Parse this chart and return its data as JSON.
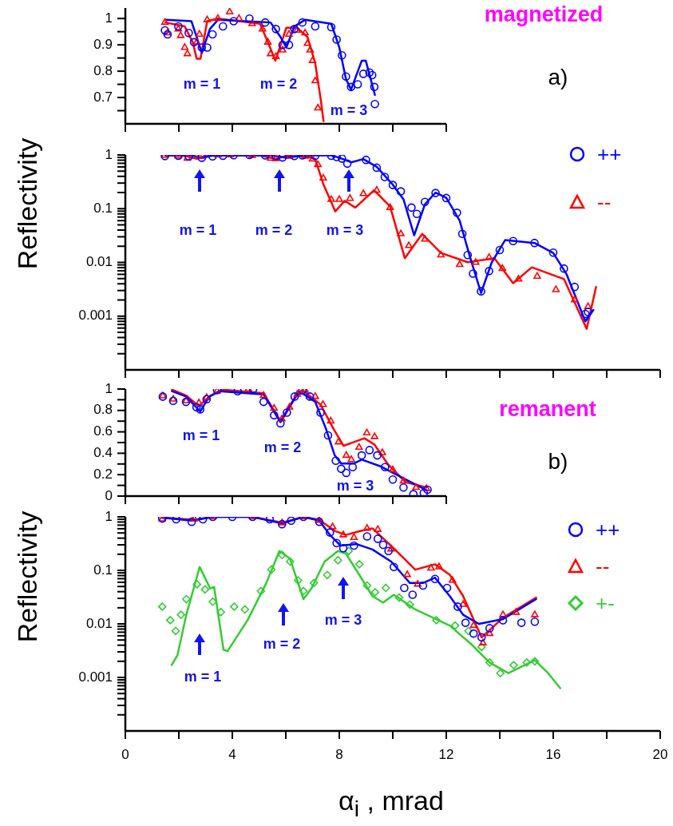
{
  "chart_data": [
    {
      "type": "scatter",
      "xlim": [
        0,
        12
      ],
      "xticks": [
        0,
        2,
        4,
        6,
        8,
        10,
        12
      ],
      "ylim": [
        0.6,
        1.04
      ],
      "yticks": [
        {
          "value": 0.65,
          "label": null
        },
        0.7,
        {
          "value": 0.75,
          "label": null
        },
        0.8,
        {
          "value": 0.85,
          "label": null
        },
        0.9,
        {
          "value": 0.95,
          "label": null
        },
        1
      ],
      "tick_labels": "y",
      "annotations": [
        "magnetized",
        "a)",
        "m = 1",
        "m = 2",
        "m = 3"
      ],
      "series": [
        {
          "type": "scatter",
          "marker": "circle",
          "color": "#0000ff",
          "x": [
            1.48,
            1.58,
            1.98,
            2.37,
            2.57,
            2.86,
            3.06,
            3.26,
            3.65,
            4.05,
            4.64,
            5.23,
            5.63,
            5.88,
            6.12,
            6.32,
            6.62,
            7.1,
            7.7,
            7.9,
            8.1,
            8.25,
            8.44,
            8.69,
            8.9,
            9.13,
            9.23,
            9.31,
            9.33
          ],
          "values": [
            0.955,
            0.94,
            0.97,
            0.945,
            0.91,
            0.89,
            0.89,
            0.94,
            0.97,
            0.99,
            1.0,
            0.985,
            0.96,
            0.9,
            0.9,
            0.96,
            0.985,
            0.97,
            0.967,
            0.92,
            0.86,
            0.78,
            0.74,
            0.75,
            0.79,
            0.795,
            0.785,
            0.74,
            0.675
          ]
        },
        {
          "type": "scatter",
          "marker": "triangle",
          "color": "#ff0000",
          "x": [
            1.48,
            1.58,
            1.98,
            2.07,
            2.22,
            2.32,
            2.67,
            2.77,
            3.06,
            3.46,
            3.9,
            4.25,
            4.74,
            5.13,
            5.33,
            5.43,
            5.63,
            5.88,
            6.12,
            6.42,
            6.72,
            6.81,
            6.91,
            7.0,
            7.1,
            7.2
          ],
          "values": [
            0.985,
            0.945,
            0.96,
            0.935,
            0.89,
            0.866,
            0.91,
            0.94,
            0.995,
            1.0,
            1.025,
            1.0,
            0.98,
            0.96,
            0.91,
            0.866,
            0.855,
            0.88,
            0.94,
            0.955,
            0.945,
            0.905,
            0.88,
            0.84,
            0.763,
            0.66
          ]
        },
        {
          "type": "line",
          "color": "#0000ff",
          "x": [
            1.5,
            2.47,
            2.86,
            3.16,
            3.46,
            5.43,
            5.8,
            6.02,
            6.32,
            6.72,
            7.7,
            8.0,
            8.25,
            8.44,
            8.84,
            8.99,
            9.33
          ],
          "values": [
            0.995,
            0.99,
            0.87,
            0.96,
            0.995,
            0.985,
            0.93,
            0.89,
            0.97,
            0.995,
            0.98,
            0.89,
            0.77,
            0.73,
            0.84,
            0.84,
            0.71
          ]
        },
        {
          "type": "line",
          "color": "#ff0000",
          "x": [
            1.5,
            2.22,
            2.52,
            2.67,
            2.81,
            3.06,
            3.46,
            5.04,
            5.43,
            5.61,
            6.02,
            6.42,
            6.81,
            7.1,
            7.31,
            7.41
          ],
          "values": [
            0.985,
            0.97,
            0.91,
            0.847,
            0.847,
            0.99,
            1.0,
            0.98,
            0.885,
            0.84,
            0.965,
            0.965,
            0.93,
            0.83,
            0.69,
            0.61
          ]
        }
      ]
    },
    {
      "type": "scatter",
      "ylabel": "Reflectivity",
      "xlim": [
        0,
        20
      ],
      "xticks": [
        0,
        2,
        4,
        6,
        8,
        10,
        12,
        14,
        16,
        18,
        20
      ],
      "ylim": [
        0.0001,
        1
      ],
      "log": "y",
      "tick_labels": "y",
      "legend": "top right",
      "yticks": [
        {
          "value": 0.0002,
          "label": null
        },
        {
          "value": 0.0003,
          "label": null
        },
        {
          "value": 0.0004,
          "label": null
        },
        {
          "value": 0.0005,
          "label": null
        },
        {
          "value": 0.0006,
          "label": null
        },
        {
          "value": 0.0007,
          "label": null
        },
        {
          "value": 0.0008,
          "label": null
        },
        {
          "value": 0.0009,
          "label": null
        },
        0.001,
        {
          "value": 0.002,
          "label": null
        },
        {
          "value": 0.003,
          "label": null
        },
        {
          "value": 0.004,
          "label": null
        },
        {
          "value": 0.005,
          "label": null
        },
        {
          "value": 0.006,
          "label": null
        },
        {
          "value": 0.007,
          "label": null
        },
        {
          "value": 0.008,
          "label": null
        },
        {
          "value": 0.009,
          "label": null
        },
        0.01,
        {
          "value": 0.02,
          "label": null
        },
        {
          "value": 0.03,
          "label": null
        },
        {
          "value": 0.04,
          "label": null
        },
        {
          "value": 0.05,
          "label": null
        },
        {
          "value": 0.06,
          "label": null
        },
        {
          "value": 0.07,
          "label": null
        },
        {
          "value": 0.08,
          "label": null
        },
        {
          "value": 0.09,
          "label": null
        },
        0.1,
        {
          "value": 0.2,
          "label": null
        },
        {
          "value": 0.3,
          "label": null
        },
        {
          "value": 0.4,
          "label": null
        },
        {
          "value": 0.5,
          "label": null
        },
        {
          "value": 0.6,
          "label": null
        },
        {
          "value": 0.7,
          "label": null
        },
        {
          "value": 0.8,
          "label": null
        },
        {
          "value": 0.9,
          "label": null
        },
        1
      ],
      "annotations": [
        "m = 1",
        "m = 2",
        "m = 3"
      ],
      "series": [
        {
          "name": "++",
          "type": "scatter",
          "marker": "circle",
          "color": "#0000ff",
          "x": [
            1.48,
            1.98,
            2.37,
            2.86,
            3.26,
            3.65,
            4.05,
            4.64,
            5.23,
            5.63,
            5.88,
            6.32,
            6.62,
            7.1,
            7.7,
            7.9,
            8.1,
            8.3,
            9.0,
            9.4,
            9.7,
            10.0,
            10.3,
            10.7,
            10.9,
            11.2,
            11.6,
            12.0,
            12.4,
            12.6,
            12.8,
            13.0,
            13.3,
            13.6,
            14.0,
            14.5,
            15.3,
            16.0,
            16.4,
            16.8,
            17.2,
            17.3
          ],
          "values": [
            0.955,
            0.97,
            0.945,
            0.89,
            0.94,
            0.97,
            0.99,
            1.0,
            0.985,
            0.96,
            0.9,
            0.96,
            0.985,
            0.97,
            0.967,
            0.92,
            0.86,
            0.69,
            0.81,
            0.58,
            0.39,
            0.276,
            0.21,
            0.105,
            0.08,
            0.134,
            0.196,
            0.158,
            0.084,
            0.034,
            0.0137,
            0.0062,
            0.0029,
            0.0069,
            0.017,
            0.025,
            0.023,
            0.0152,
            0.0077,
            0.0035,
            0.0011,
            0.0012
          ]
        },
        {
          "name": "--",
          "type": "scatter",
          "marker": "triangle",
          "color": "#ff0000",
          "x": [
            1.48,
            1.98,
            2.32,
            2.77,
            3.46,
            3.9,
            4.74,
            5.43,
            5.63,
            6.12,
            6.72,
            7.0,
            7.2,
            7.4,
            7.7,
            8.0,
            8.4,
            8.9,
            9.4,
            9.9,
            10.3,
            10.6,
            11.2,
            11.8,
            12.5,
            13.1,
            13.6,
            14.1,
            14.7,
            15.4,
            16.1,
            16.8,
            17.3
          ],
          "values": [
            0.985,
            0.96,
            0.866,
            0.94,
            1.0,
            1.0,
            0.98,
            0.866,
            0.855,
            0.94,
            0.945,
            0.84,
            0.66,
            0.37,
            0.148,
            0.148,
            0.155,
            0.19,
            0.22,
            0.105,
            0.034,
            0.0205,
            0.027,
            0.0137,
            0.0091,
            0.01,
            0.0123,
            0.0077,
            0.0049,
            0.0055,
            0.0031,
            0.002,
            0.0015
          ]
        },
        {
          "type": "line",
          "color": "#0000ff",
          "x": [
            1.5,
            2.47,
            2.86,
            3.16,
            3.46,
            5.43,
            6.02,
            6.72,
            7.7,
            8.0,
            8.44,
            8.9,
            9.4,
            10.0,
            10.4,
            10.8,
            11.2,
            11.6,
            12.0,
            12.5,
            12.9,
            13.3,
            13.7,
            14.2,
            15.3,
            16.0,
            16.5,
            17.2,
            17.5
          ],
          "values": [
            0.995,
            0.99,
            0.87,
            0.96,
            0.995,
            0.985,
            0.89,
            0.995,
            0.98,
            0.89,
            0.73,
            0.84,
            0.6,
            0.28,
            0.15,
            0.032,
            0.12,
            0.2,
            0.16,
            0.06,
            0.012,
            0.0027,
            0.01,
            0.026,
            0.023,
            0.015,
            0.006,
            0.0008,
            0.0013
          ]
        },
        {
          "type": "line",
          "color": "#ff0000",
          "x": [
            1.5,
            2.22,
            2.67,
            3.06,
            5.04,
            5.61,
            6.02,
            6.81,
            7.1,
            7.4,
            7.85,
            8.2,
            8.6,
            9.3,
            9.9,
            10.45,
            11.1,
            11.8,
            12.8,
            13.8,
            14.5,
            15.2,
            16.4,
            17.25,
            17.6
          ],
          "values": [
            0.985,
            0.97,
            0.847,
            0.99,
            0.98,
            0.84,
            0.965,
            0.93,
            0.83,
            0.29,
            0.089,
            0.14,
            0.105,
            0.22,
            0.11,
            0.012,
            0.034,
            0.015,
            0.0101,
            0.012,
            0.0041,
            0.0081,
            0.0049,
            0.00058,
            0.0035
          ]
        }
      ]
    },
    {
      "type": "scatter",
      "xlim": [
        0,
        12
      ],
      "xticks": [
        0,
        2,
        4,
        6,
        8,
        10,
        12
      ],
      "ylim": [
        0,
        1
      ],
      "yticks": [
        0,
        {
          "value": 0.1,
          "label": null
        },
        0.2,
        {
          "value": 0.3,
          "label": null
        },
        0.4,
        {
          "value": 0.5,
          "label": null
        },
        0.6,
        {
          "value": 0.7,
          "label": null
        },
        0.8,
        {
          "value": 0.9,
          "label": null
        },
        1
      ],
      "tick_labels": "y",
      "annotations": [
        "remanent",
        "b)",
        "m = 1",
        "m = 2",
        "m = 3"
      ],
      "series": [
        {
          "type": "scatter",
          "marker": "circle",
          "color": "#0000ff",
          "x": [
            1.4,
            1.79,
            2.27,
            2.66,
            2.8,
            3.04,
            3.43,
            4.2,
            4.78,
            5.17,
            5.56,
            5.8,
            6.04,
            6.33,
            6.62,
            6.9,
            7.3,
            7.58,
            7.87,
            8.07,
            8.26,
            8.5,
            8.84,
            9.13,
            9.42,
            9.71,
            10.0,
            10.4,
            10.77,
            11.16,
            11.3
          ],
          "values": [
            0.93,
            0.89,
            0.88,
            0.83,
            0.81,
            0.905,
            0.99,
            0.98,
            1.0,
            0.88,
            0.755,
            0.68,
            0.78,
            0.93,
            0.99,
            0.93,
            0.78,
            0.567,
            0.33,
            0.255,
            0.217,
            0.27,
            0.38,
            0.43,
            0.38,
            0.27,
            0.155,
            0.08,
            0.018,
            0.03,
            0.06
          ]
        },
        {
          "type": "scatter",
          "marker": "triangle",
          "color": "#ff0000",
          "x": [
            1.4,
            1.79,
            2.27,
            2.75,
            3.04,
            3.43,
            4.6,
            5.17,
            5.56,
            5.85,
            6.14,
            6.43,
            6.72,
            7.1,
            7.39,
            7.68,
            7.97,
            8.26,
            8.45,
            8.74,
            9.03,
            9.32,
            9.61,
            10.0,
            10.4,
            10.87,
            11.26
          ],
          "values": [
            0.935,
            0.905,
            0.89,
            0.87,
            0.92,
            0.98,
            1.0,
            0.94,
            0.82,
            0.72,
            0.83,
            0.95,
            0.99,
            0.93,
            0.855,
            0.7,
            0.505,
            0.38,
            0.34,
            0.455,
            0.59,
            0.555,
            0.405,
            0.245,
            0.14,
            0.08,
            0.07
          ]
        },
        {
          "type": "line",
          "color": "#0000ff",
          "x": [
            1.74,
            2.27,
            2.8,
            3.14,
            3.53,
            5.17,
            5.8,
            6.43,
            6.62,
            7.1,
            7.5,
            7.83,
            8.07,
            8.55,
            8.84,
            9.52,
            10.48,
            11.26
          ],
          "values": [
            0.98,
            0.93,
            0.79,
            0.93,
            0.98,
            0.95,
            0.69,
            0.95,
            0.96,
            0.88,
            0.63,
            0.38,
            0.305,
            0.305,
            0.34,
            0.28,
            0.155,
            0.055
          ]
        },
        {
          "type": "line",
          "color": "#ff0000",
          "x": [
            1.74,
            2.27,
            2.75,
            3.14,
            3.62,
            5.17,
            5.8,
            6.43,
            6.62,
            7.3,
            7.78,
            8.16,
            8.55,
            8.94,
            9.32,
            9.81,
            10.48,
            11.26
          ],
          "values": [
            0.995,
            0.94,
            0.84,
            0.93,
            0.995,
            0.96,
            0.7,
            0.96,
            0.99,
            0.855,
            0.63,
            0.47,
            0.505,
            0.54,
            0.48,
            0.3,
            0.13,
            0.08
          ]
        }
      ]
    },
    {
      "type": "scatter",
      "ylabel": "Reflectivity",
      "xlabel": "α$_{i}$ , mrad",
      "xlim": [
        0,
        20
      ],
      "xticks": [
        0,
        {
          "value": 2,
          "label": null
        },
        4,
        {
          "value": 6,
          "label": null
        },
        8,
        {
          "value": 10,
          "label": null
        },
        12,
        {
          "value": 14,
          "label": null
        },
        16,
        {
          "value": 18,
          "label": null
        },
        20
      ],
      "ylim": [
        0.0001,
        1
      ],
      "log": "y",
      "legend": "top right",
      "yticks": [
        {
          "value": 0.0002,
          "label": null
        },
        {
          "value": 0.0003,
          "label": null
        },
        {
          "value": 0.0004,
          "label": null
        },
        {
          "value": 0.0005,
          "label": null
        },
        {
          "value": 0.0006,
          "label": null
        },
        {
          "value": 0.0007,
          "label": null
        },
        {
          "value": 0.0008,
          "label": null
        },
        {
          "value": 0.0009,
          "label": null
        },
        0.001,
        {
          "value": 0.002,
          "label": null
        },
        {
          "value": 0.003,
          "label": null
        },
        {
          "value": 0.004,
          "label": null
        },
        {
          "value": 0.005,
          "label": null
        },
        {
          "value": 0.006,
          "label": null
        },
        {
          "value": 0.007,
          "label": null
        },
        {
          "value": 0.008,
          "label": null
        },
        {
          "value": 0.009,
          "label": null
        },
        0.01,
        {
          "value": 0.02,
          "label": null
        },
        {
          "value": 0.03,
          "label": null
        },
        {
          "value": 0.04,
          "label": null
        },
        {
          "value": 0.05,
          "label": null
        },
        {
          "value": 0.06,
          "label": null
        },
        {
          "value": 0.07,
          "label": null
        },
        {
          "value": 0.08,
          "label": null
        },
        {
          "value": 0.09,
          "label": null
        },
        0.1,
        {
          "value": 0.2,
          "label": null
        },
        {
          "value": 0.3,
          "label": null
        },
        {
          "value": 0.4,
          "label": null
        },
        {
          "value": 0.5,
          "label": null
        },
        {
          "value": 0.6,
          "label": null
        },
        {
          "value": 0.7,
          "label": null
        },
        {
          "value": 0.8,
          "label": null
        },
        {
          "value": 0.9,
          "label": null
        },
        1
      ],
      "annotations": [
        "m = 1",
        "m = 2",
        "m = 3"
      ],
      "series": [
        {
          "name": "++",
          "type": "scatter",
          "marker": "circle",
          "color": "#0000ff",
          "x": [
            1.38,
            1.9,
            2.48,
            2.9,
            3.27,
            4.0,
            4.76,
            5.4,
            5.86,
            6.2,
            6.66,
            7.25,
            7.65,
            7.9,
            8.15,
            8.55,
            9.04,
            9.44,
            9.64,
            9.84,
            10.04,
            10.43,
            10.74,
            11.13,
            11.58,
            12.03,
            12.43,
            12.72,
            13.02,
            13.32,
            13.62,
            14.12,
            14.81,
            15.31
          ],
          "values": [
            0.93,
            0.9,
            0.81,
            0.9,
            1.0,
            1.0,
            1.0,
            0.9,
            0.73,
            0.85,
            1.0,
            0.81,
            0.51,
            0.325,
            0.26,
            0.29,
            0.43,
            0.39,
            0.3,
            0.23,
            0.116,
            0.047,
            0.035,
            0.052,
            0.069,
            0.047,
            0.021,
            0.0105,
            0.0066,
            0.0056,
            0.0083,
            0.0117,
            0.0105,
            0.011
          ]
        },
        {
          "name": "--",
          "type": "scatter",
          "marker": "triangle",
          "color": "#ff0000",
          "x": [
            1.38,
            2.58,
            3.27,
            4.76,
            5.86,
            6.66,
            7.25,
            7.75,
            8.15,
            8.55,
            9.04,
            9.44,
            9.94,
            10.54,
            10.93,
            11.43,
            11.73,
            12.23,
            12.63,
            13.02,
            13.37,
            13.62,
            14.12,
            14.61,
            15.31
          ],
          "values": [
            0.91,
            0.91,
            1.0,
            1.0,
            0.77,
            1.0,
            0.86,
            0.65,
            0.46,
            0.41,
            0.61,
            0.58,
            0.25,
            0.083,
            0.055,
            0.11,
            0.116,
            0.065,
            0.023,
            0.0093,
            0.0044,
            0.0066,
            0.0148,
            0.0164,
            0.0148
          ]
        },
        {
          "name": "+-",
          "type": "scatter",
          "marker": "diamond",
          "color": "#33cc33",
          "x": [
            1.38,
            1.68,
            1.88,
            2.08,
            2.28,
            2.68,
            2.98,
            3.27,
            3.57,
            4.07,
            4.47,
            5.07,
            5.46,
            5.86,
            6.16,
            6.46,
            6.66,
            7.05,
            7.55,
            7.95,
            8.35,
            8.75,
            9.04,
            9.34,
            9.74,
            10.24,
            10.64,
            11.63,
            12.33,
            12.83,
            13.32,
            13.62,
            14.02,
            14.52,
            15.01,
            15.31
          ],
          "values": [
            0.021,
            0.0117,
            0.0074,
            0.0148,
            0.029,
            0.055,
            0.044,
            0.026,
            0.0166,
            0.021,
            0.0186,
            0.041,
            0.1035,
            0.194,
            0.146,
            0.065,
            0.041,
            0.058,
            0.082,
            0.155,
            0.23,
            0.13,
            0.052,
            0.039,
            0.047,
            0.031,
            0.023,
            0.0117,
            0.0093,
            0.0074,
            0.0037,
            0.0019,
            0.0012,
            0.0017,
            0.0019,
            0.002
          ]
        },
        {
          "type": "line",
          "color": "#0000ff",
          "x": [
            1.38,
            2.48,
            3.27,
            4.76,
            5.86,
            6.66,
            7.25,
            7.65,
            8.05,
            8.65,
            9.24,
            9.94,
            10.64,
            11.13,
            11.58,
            12.13,
            12.63,
            13.22,
            14.12,
            15.36
          ],
          "values": [
            0.97,
            0.85,
            1.0,
            1.0,
            0.75,
            1.0,
            0.85,
            0.46,
            0.29,
            0.31,
            0.245,
            0.146,
            0.058,
            0.058,
            0.073,
            0.033,
            0.0148,
            0.01,
            0.0123,
            0.029
          ]
        },
        {
          "type": "line",
          "color": "#ff0000",
          "x": [
            1.38,
            2.58,
            3.27,
            4.76,
            5.86,
            6.66,
            7.25,
            7.85,
            8.25,
            8.75,
            9.24,
            10.14,
            10.84,
            11.58,
            12.13,
            12.63,
            13.32,
            14.12,
            15.36
          ],
          "values": [
            0.97,
            0.88,
            1.0,
            1.0,
            0.78,
            1.0,
            0.88,
            0.54,
            0.46,
            0.54,
            0.61,
            0.23,
            0.103,
            0.13,
            0.083,
            0.033,
            0.0056,
            0.013,
            0.031
          ]
        },
        {
          "type": "line",
          "color": "#33cc33",
          "x": [
            1.73,
            1.95,
            2.28,
            2.78,
            3.17,
            3.32,
            3.67,
            3.82,
            4.57,
            5.27,
            5.76,
            6.16,
            6.66,
            6.96,
            7.45,
            7.95,
            8.25,
            8.75,
            9.24,
            9.64,
            10.04,
            10.84,
            12.13,
            12.93,
            13.62,
            14.32,
            15.31,
            15.81,
            16.26
          ],
          "values": [
            0.0017,
            0.0026,
            0.0148,
            0.116,
            0.046,
            0.049,
            0.0033,
            0.0031,
            0.0117,
            0.058,
            0.23,
            0.164,
            0.029,
            0.046,
            0.146,
            0.23,
            0.205,
            0.082,
            0.033,
            0.025,
            0.035,
            0.0186,
            0.0093,
            0.0042,
            0.0019,
            0.0012,
            0.0021,
            0.0012,
            0.00063
          ]
        }
      ]
    }
  ]
}
